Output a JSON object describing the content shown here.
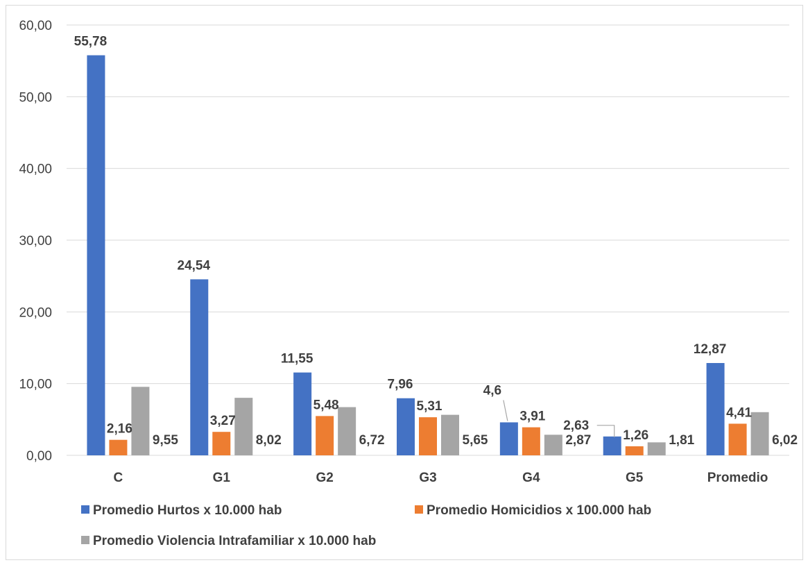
{
  "chart_data": {
    "type": "bar",
    "title": "",
    "xlabel": "",
    "ylabel": "",
    "ylim": [
      0,
      60
    ],
    "yticks": [
      "0,00",
      "10,00",
      "20,00",
      "30,00",
      "40,00",
      "50,00",
      "60,00"
    ],
    "grid": true,
    "legend_position": "bottom",
    "categories": [
      "C",
      "G1",
      "G2",
      "G3",
      "G4",
      "G5",
      "Promedio"
    ],
    "series": [
      {
        "name": "Promedio Hurtos x 10.000 hab",
        "color": "#4472C4",
        "values": [
          55.78,
          24.54,
          11.55,
          7.96,
          4.6,
          2.63,
          12.87
        ],
        "labels": [
          "55,78",
          "24,54",
          "11,55",
          "7,96",
          "4,6",
          "2,63",
          "12,87"
        ]
      },
      {
        "name": "Promedio Homicidios x 100.000 hab",
        "color": "#ED7D31",
        "values": [
          2.16,
          3.27,
          5.48,
          5.31,
          3.91,
          1.26,
          4.41
        ],
        "labels": [
          "2,16",
          "3,27",
          "5,48",
          "5,31",
          "3,91",
          "1,26",
          "4,41"
        ]
      },
      {
        "name": "Promedio Violencia Intrafamiliar x 10.000 hab",
        "color": "#A5A5A5",
        "values": [
          9.55,
          8.02,
          6.72,
          5.65,
          2.87,
          1.81,
          6.02
        ],
        "labels": [
          "9,55",
          "8,02",
          "6,72",
          "5,65",
          "2,87",
          "1,81",
          "6,02"
        ]
      }
    ]
  }
}
